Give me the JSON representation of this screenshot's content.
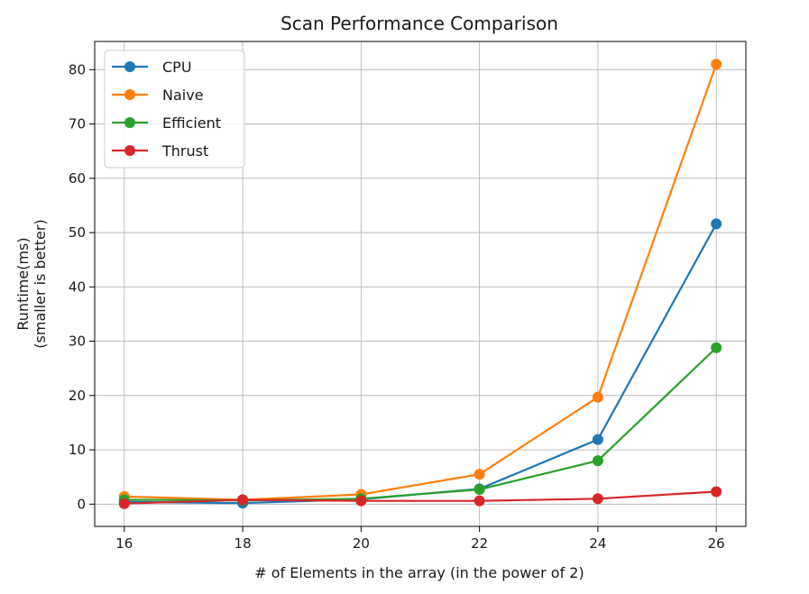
{
  "chart_data": {
    "type": "line",
    "title": "Scan Performance Comparison",
    "xlabel": "# of Elements in the array (in the power of 2)",
    "ylabel_lines": [
      "Runtime(ms)",
      "(smaller is better)"
    ],
    "x": [
      16,
      18,
      20,
      22,
      24,
      26
    ],
    "xticks": [
      16,
      18,
      20,
      22,
      24,
      26
    ],
    "yticks": [
      0,
      10,
      20,
      30,
      40,
      50,
      60,
      70,
      80
    ],
    "xlim": [
      15.5,
      26.5
    ],
    "ylim": [
      -4.1,
      85.2
    ],
    "grid": true,
    "legend_position": "top-left",
    "series": [
      {
        "name": "CPU",
        "color": "#1f77b4",
        "values": [
          0.4,
          0.2,
          0.9,
          2.8,
          11.9,
          51.6
        ]
      },
      {
        "name": "Naive",
        "color": "#ff7f0e",
        "values": [
          1.4,
          0.8,
          1.8,
          5.5,
          19.7,
          81.0
        ]
      },
      {
        "name": "Efficient",
        "color": "#2ca02c",
        "values": [
          0.8,
          0.7,
          1.0,
          2.7,
          8.0,
          28.8
        ]
      },
      {
        "name": "Thrust",
        "color": "#d62728",
        "values": [
          0.1,
          0.8,
          0.6,
          0.6,
          1.0,
          2.3
        ]
      }
    ]
  }
}
